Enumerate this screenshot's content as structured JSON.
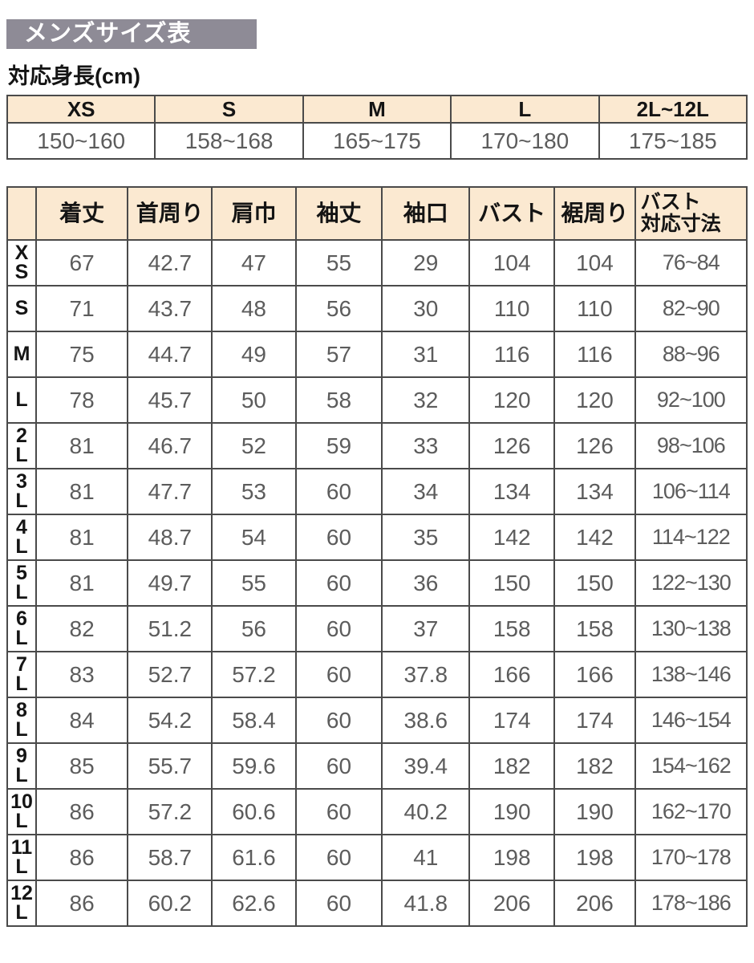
{
  "page": {
    "title": "メンズサイズ表",
    "subtitle": "対応身長(cm)"
  },
  "colors": {
    "title_bar_bg": "#8e8b96",
    "title_text": "#ffffff",
    "table_header_bg": "#fbe9d1",
    "table_border": "#4a4a4a",
    "value_text": "#5c5c5c",
    "label_text": "#141414"
  },
  "height_table": {
    "columns": [
      "XS",
      "S",
      "M",
      "L",
      "2L~12L"
    ],
    "values": [
      "150~160",
      "158~168",
      "165~175",
      "170~180",
      "175~185"
    ]
  },
  "size_table": {
    "corner_label": "",
    "columns": [
      "着丈",
      "首周り",
      "肩巾",
      "袖丈",
      "袖口",
      "バスト",
      "裾周り",
      "バスト\n対応寸法"
    ],
    "rows": [
      {
        "size": "XS",
        "values": [
          "67",
          "42.7",
          "47",
          "55",
          "29",
          "104",
          "104",
          "76~84"
        ]
      },
      {
        "size": "S",
        "values": [
          "71",
          "43.7",
          "48",
          "56",
          "30",
          "110",
          "110",
          "82~90"
        ]
      },
      {
        "size": "M",
        "values": [
          "75",
          "44.7",
          "49",
          "57",
          "31",
          "116",
          "116",
          "88~96"
        ]
      },
      {
        "size": "L",
        "values": [
          "78",
          "45.7",
          "50",
          "58",
          "32",
          "120",
          "120",
          "92~100"
        ]
      },
      {
        "size": "2L",
        "values": [
          "81",
          "46.7",
          "52",
          "59",
          "33",
          "126",
          "126",
          "98~106"
        ]
      },
      {
        "size": "3L",
        "values": [
          "81",
          "47.7",
          "53",
          "60",
          "34",
          "134",
          "134",
          "106~114"
        ]
      },
      {
        "size": "4L",
        "values": [
          "81",
          "48.7",
          "54",
          "60",
          "35",
          "142",
          "142",
          "114~122"
        ]
      },
      {
        "size": "5L",
        "values": [
          "81",
          "49.7",
          "55",
          "60",
          "36",
          "150",
          "150",
          "122~130"
        ]
      },
      {
        "size": "6L",
        "values": [
          "82",
          "51.2",
          "56",
          "60",
          "37",
          "158",
          "158",
          "130~138"
        ]
      },
      {
        "size": "7L",
        "values": [
          "83",
          "52.7",
          "57.2",
          "60",
          "37.8",
          "166",
          "166",
          "138~146"
        ]
      },
      {
        "size": "8L",
        "values": [
          "84",
          "54.2",
          "58.4",
          "60",
          "38.6",
          "174",
          "174",
          "146~154"
        ]
      },
      {
        "size": "9L",
        "values": [
          "85",
          "55.7",
          "59.6",
          "60",
          "39.4",
          "182",
          "182",
          "154~162"
        ]
      },
      {
        "size": "10L",
        "values": [
          "86",
          "57.2",
          "60.6",
          "60",
          "40.2",
          "190",
          "190",
          "162~170"
        ]
      },
      {
        "size": "11L",
        "values": [
          "86",
          "58.7",
          "61.6",
          "60",
          "41",
          "198",
          "198",
          "170~178"
        ]
      },
      {
        "size": "12L",
        "values": [
          "86",
          "60.2",
          "62.6",
          "60",
          "41.8",
          "206",
          "206",
          "178~186"
        ]
      }
    ]
  }
}
